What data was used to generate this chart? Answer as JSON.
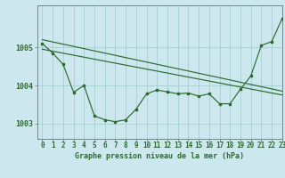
{
  "background_color": "#cce8ee",
  "grid_color": "#99cccc",
  "line_color": "#2d6a2d",
  "title": "Graphe pression niveau de la mer (hPa)",
  "xlim": [
    -0.5,
    23
  ],
  "ylim": [
    1002.6,
    1006.1
  ],
  "yticks": [
    1003,
    1004,
    1005
  ],
  "xticks": [
    0,
    1,
    2,
    3,
    4,
    5,
    6,
    7,
    8,
    9,
    10,
    11,
    12,
    13,
    14,
    15,
    16,
    17,
    18,
    19,
    20,
    21,
    22,
    23
  ],
  "line1_x": [
    0,
    23
  ],
  "line1_y": [
    1005.2,
    1003.85
  ],
  "line2_x": [
    0,
    23
  ],
  "line2_y": [
    1004.95,
    1003.75
  ],
  "line3_x": [
    0,
    1,
    2,
    3,
    4,
    5,
    6,
    7,
    8,
    9,
    10,
    11,
    12,
    13,
    14,
    15,
    16,
    17,
    18,
    19,
    20,
    21,
    22,
    23
  ],
  "line3_y": [
    1005.1,
    1004.85,
    1004.55,
    1003.82,
    1004.0,
    1003.2,
    1003.1,
    1003.05,
    1003.1,
    1003.38,
    1003.78,
    1003.88,
    1003.83,
    1003.78,
    1003.8,
    1003.72,
    1003.78,
    1003.52,
    1003.52,
    1003.9,
    1004.25,
    1005.05,
    1005.15,
    1005.75
  ],
  "title_fontsize": 6.0,
  "tick_fontsize": 5.5,
  "ytick_fontsize": 6.0
}
